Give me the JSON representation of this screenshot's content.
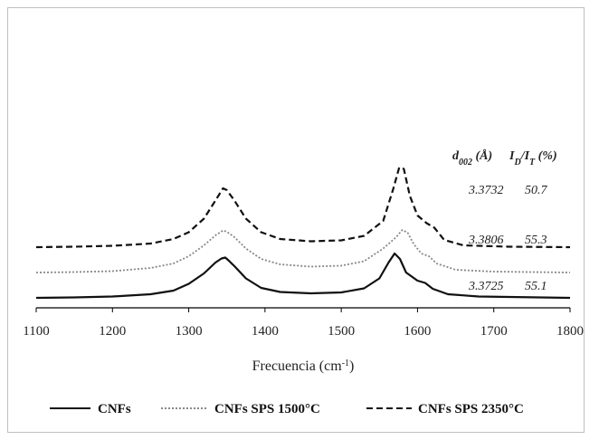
{
  "chart_data": {
    "type": "line",
    "xlabel_main": "Frecuencia (cm",
    "xlabel_sup": "-1",
    "xlabel_end": ")",
    "xlim": [
      1100,
      1800
    ],
    "xticks": [
      "1100",
      "1200",
      "1300",
      "1400",
      "1500",
      "1600",
      "1700",
      "1800"
    ],
    "series": [
      {
        "name": "CNFs",
        "color": "#111111",
        "dash": "solid",
        "baseline": 0.0,
        "points": [
          [
            1100,
            0.02
          ],
          [
            1150,
            0.03
          ],
          [
            1200,
            0.05
          ],
          [
            1250,
            0.1
          ],
          [
            1280,
            0.18
          ],
          [
            1300,
            0.33
          ],
          [
            1320,
            0.56
          ],
          [
            1335,
            0.8
          ],
          [
            1343,
            0.89
          ],
          [
            1348,
            0.91
          ],
          [
            1352,
            0.85
          ],
          [
            1360,
            0.72
          ],
          [
            1375,
            0.45
          ],
          [
            1395,
            0.24
          ],
          [
            1420,
            0.15
          ],
          [
            1460,
            0.12
          ],
          [
            1500,
            0.14
          ],
          [
            1530,
            0.23
          ],
          [
            1550,
            0.45
          ],
          [
            1562,
            0.8
          ],
          [
            1570,
            1.0
          ],
          [
            1577,
            0.88
          ],
          [
            1585,
            0.58
          ],
          [
            1600,
            0.4
          ],
          [
            1610,
            0.35
          ],
          [
            1620,
            0.22
          ],
          [
            1640,
            0.1
          ],
          [
            1680,
            0.05
          ],
          [
            1720,
            0.04
          ],
          [
            1800,
            0.02
          ]
        ]
      },
      {
        "name": "CNFs SPS 1500°C",
        "color": "#888888",
        "dash": "dotted",
        "baseline": 0.56,
        "points": [
          [
            1100,
            0.02
          ],
          [
            1150,
            0.03
          ],
          [
            1200,
            0.05
          ],
          [
            1250,
            0.12
          ],
          [
            1280,
            0.22
          ],
          [
            1300,
            0.38
          ],
          [
            1320,
            0.62
          ],
          [
            1335,
            0.84
          ],
          [
            1345,
            0.95
          ],
          [
            1350,
            0.92
          ],
          [
            1360,
            0.8
          ],
          [
            1375,
            0.55
          ],
          [
            1395,
            0.32
          ],
          [
            1420,
            0.2
          ],
          [
            1460,
            0.15
          ],
          [
            1500,
            0.17
          ],
          [
            1530,
            0.27
          ],
          [
            1555,
            0.55
          ],
          [
            1572,
            0.8
          ],
          [
            1580,
            0.96
          ],
          [
            1587,
            0.9
          ],
          [
            1595,
            0.65
          ],
          [
            1605,
            0.44
          ],
          [
            1615,
            0.38
          ],
          [
            1625,
            0.22
          ],
          [
            1650,
            0.08
          ],
          [
            1700,
            0.04
          ],
          [
            1800,
            0.02
          ]
        ]
      },
      {
        "name": "CNFs SPS 2350°C",
        "color": "#111111",
        "dash": "dashed",
        "baseline": 1.12,
        "points": [
          [
            1100,
            0.02
          ],
          [
            1150,
            0.03
          ],
          [
            1200,
            0.05
          ],
          [
            1250,
            0.1
          ],
          [
            1280,
            0.2
          ],
          [
            1300,
            0.35
          ],
          [
            1320,
            0.65
          ],
          [
            1335,
            1.05
          ],
          [
            1345,
            1.32
          ],
          [
            1350,
            1.28
          ],
          [
            1360,
            1.05
          ],
          [
            1375,
            0.65
          ],
          [
            1395,
            0.35
          ],
          [
            1420,
            0.2
          ],
          [
            1460,
            0.15
          ],
          [
            1500,
            0.17
          ],
          [
            1530,
            0.27
          ],
          [
            1555,
            0.6
          ],
          [
            1568,
            1.3
          ],
          [
            1576,
            1.78
          ],
          [
            1582,
            1.75
          ],
          [
            1590,
            1.15
          ],
          [
            1600,
            0.72
          ],
          [
            1612,
            0.55
          ],
          [
            1622,
            0.45
          ],
          [
            1635,
            0.18
          ],
          [
            1660,
            0.06
          ],
          [
            1720,
            0.03
          ],
          [
            1800,
            0.02
          ]
        ]
      }
    ],
    "annotations": {
      "header_d": "d",
      "header_d_sub": "002",
      "header_d_rest": " (Å)",
      "header_i": "I",
      "header_i_sub1": "D",
      "header_i_slash": "/I",
      "header_i_sub2": "T",
      "header_i_rest": " (%)",
      "rows": [
        {
          "d": "3.3732",
          "i": "50.7"
        },
        {
          "d": "3.3806",
          "i": "55.3"
        },
        {
          "d": "3.3725",
          "i": "55.1"
        }
      ]
    },
    "legend_position": "bottom",
    "grid": false
  }
}
